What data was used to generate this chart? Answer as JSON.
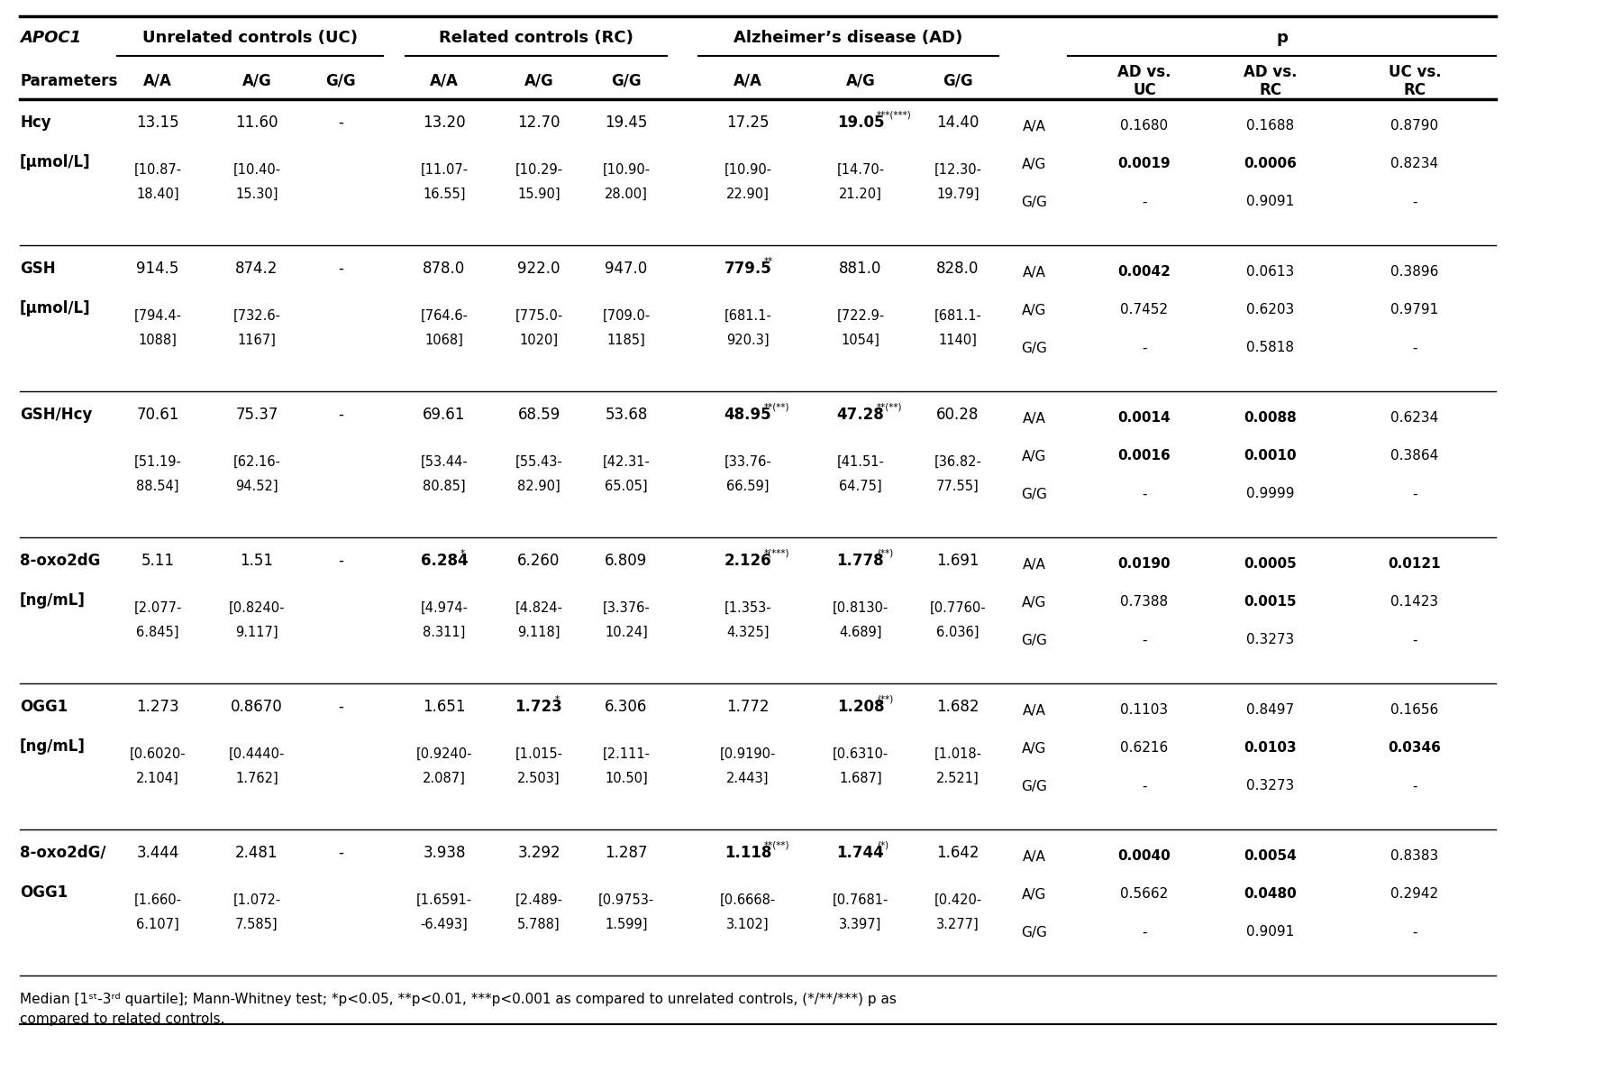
{
  "rows": [
    {
      "param1": "Hcy",
      "param2": "[μmol/L]",
      "UC_AA": "13.15",
      "UC_AG": "11.60",
      "UC_GG": "-",
      "RC_AA": "13.20",
      "RC_AG": "12.70",
      "RC_GG": "19.45",
      "AD_AA": "17.25",
      "AD_AG": "19.05",
      "AD_AG_sup": "***(***)",
      "AD_GG": "14.40",
      "AD_AA_bold": false,
      "AD_AG_bold": true,
      "RC_AA_bold": false,
      "RC_AG_bold": false,
      "p_UC": [
        "0.1680",
        "0.0019",
        "-"
      ],
      "p_RC": [
        "0.1688",
        "0.0006",
        "0.9091"
      ],
      "p_UCRC": [
        "0.8790",
        "0.8234",
        "-"
      ],
      "p_UC_bold": [
        false,
        true,
        false
      ],
      "p_RC_bold": [
        false,
        true,
        false
      ],
      "p_UCRC_bold": [
        false,
        false,
        false
      ],
      "UC_AA_q": "[10.87-",
      "UC_AA_q2": "18.40]",
      "UC_AG_q": "[10.40-",
      "UC_AG_q2": "15.30]",
      "UC_GG_q": "",
      "UC_GG_q2": "",
      "RC_AA_q": "[11.07-",
      "RC_AA_q2": "16.55]",
      "RC_AG_q": "[10.29-",
      "RC_AG_q2": "15.90]",
      "RC_GG_q": "[10.90-",
      "RC_GG_q2": "28.00]",
      "AD_AA_q": "[10.90-",
      "AD_AA_q2": "22.90]",
      "AD_AG_q": "[14.70-",
      "AD_AG_q2": "21.20]",
      "AD_GG_q": "[12.30-",
      "AD_GG_q2": "19.79]"
    },
    {
      "param1": "GSH",
      "param2": "[μmol/L]",
      "UC_AA": "914.5",
      "UC_AG": "874.2",
      "UC_GG": "-",
      "RC_AA": "878.0",
      "RC_AG": "922.0",
      "RC_GG": "947.0",
      "AD_AA": "779.5",
      "AD_AA_sup": "**",
      "AD_AG": "881.0",
      "AD_GG": "828.0",
      "AD_AA_bold": true,
      "AD_AG_bold": false,
      "RC_AA_bold": false,
      "RC_AG_bold": false,
      "p_UC": [
        "0.0042",
        "0.7452",
        "-"
      ],
      "p_RC": [
        "0.0613",
        "0.6203",
        "0.5818"
      ],
      "p_UCRC": [
        "0.3896",
        "0.9791",
        "-"
      ],
      "p_UC_bold": [
        true,
        false,
        false
      ],
      "p_RC_bold": [
        false,
        false,
        false
      ],
      "p_UCRC_bold": [
        false,
        false,
        false
      ],
      "UC_AA_q": "[794.4-",
      "UC_AA_q2": "1088]",
      "UC_AG_q": "[732.6-",
      "UC_AG_q2": "1167]",
      "UC_GG_q": "",
      "UC_GG_q2": "",
      "RC_AA_q": "[764.6-",
      "RC_AA_q2": "1068]",
      "RC_AG_q": "[775.0-",
      "RC_AG_q2": "1020]",
      "RC_GG_q": "[709.0-",
      "RC_GG_q2": "1185]",
      "AD_AA_q": "[681.1-",
      "AD_AA_q2": "920.3]",
      "AD_AG_q": "[722.9-",
      "AD_AG_q2": "1054]",
      "AD_GG_q": "[681.1-",
      "AD_GG_q2": "1140]"
    },
    {
      "param1": "GSH/Hcy",
      "param2": "",
      "UC_AA": "70.61",
      "UC_AG": "75.37",
      "UC_GG": "-",
      "RC_AA": "69.61",
      "RC_AG": "68.59",
      "RC_GG": "53.68",
      "AD_AA": "48.95",
      "AD_AA_sup": "**(**)",
      "AD_AG": "47.28",
      "AD_AG_sup": "**(**)",
      "AD_GG": "60.28",
      "AD_AA_bold": true,
      "AD_AG_bold": true,
      "RC_AA_bold": false,
      "RC_AG_bold": false,
      "p_UC": [
        "0.0014",
        "0.0016",
        "-"
      ],
      "p_RC": [
        "0.0088",
        "0.0010",
        "0.9999"
      ],
      "p_UCRC": [
        "0.6234",
        "0.3864",
        "-"
      ],
      "p_UC_bold": [
        true,
        true,
        false
      ],
      "p_RC_bold": [
        true,
        true,
        false
      ],
      "p_UCRC_bold": [
        false,
        false,
        false
      ],
      "UC_AA_q": "[51.19-",
      "UC_AA_q2": "88.54]",
      "UC_AG_q": "[62.16-",
      "UC_AG_q2": "94.52]",
      "UC_GG_q": "",
      "UC_GG_q2": "",
      "RC_AA_q": "[53.44-",
      "RC_AA_q2": "80.85]",
      "RC_AG_q": "[55.43-",
      "RC_AG_q2": "82.90]",
      "RC_GG_q": "[42.31-",
      "RC_GG_q2": "65.05]",
      "AD_AA_q": "[33.76-",
      "AD_AA_q2": "66.59]",
      "AD_AG_q": "[41.51-",
      "AD_AG_q2": "64.75]",
      "AD_GG_q": "[36.82-",
      "AD_GG_q2": "77.55]"
    },
    {
      "param1": "8-oxo2dG",
      "param2": "[ng/mL]",
      "UC_AA": "5.11",
      "UC_AG": "1.51",
      "UC_GG": "-",
      "RC_AA": "6.284",
      "RC_AA_sup": "*",
      "RC_AG": "6.260",
      "RC_GG": "6.809",
      "AD_AA": "2.126",
      "AD_AA_sup": "*(***)",
      "AD_AG": "1.778",
      "AD_AG_sup": "(**)",
      "AD_GG": "1.691",
      "AD_AA_bold": true,
      "AD_AG_bold": true,
      "RC_AA_bold": true,
      "RC_AG_bold": false,
      "p_UC": [
        "0.0190",
        "0.7388",
        "-"
      ],
      "p_RC": [
        "0.0005",
        "0.0015",
        "0.3273"
      ],
      "p_UCRC": [
        "0.0121",
        "0.1423",
        "-"
      ],
      "p_UC_bold": [
        true,
        false,
        false
      ],
      "p_RC_bold": [
        true,
        true,
        false
      ],
      "p_UCRC_bold": [
        true,
        false,
        false
      ],
      "UC_AA_q": "[2.077-",
      "UC_AA_q2": "6.845]",
      "UC_AG_q": "[0.8240-",
      "UC_AG_q2": "9.117]",
      "UC_GG_q": "",
      "UC_GG_q2": "",
      "RC_AA_q": "[4.974-",
      "RC_AA_q2": "8.311]",
      "RC_AG_q": "[4.824-",
      "RC_AG_q2": "9.118]",
      "RC_GG_q": "[3.376-",
      "RC_GG_q2": "10.24]",
      "AD_AA_q": "[1.353-",
      "AD_AA_q2": "4.325]",
      "AD_AG_q": "[0.8130-",
      "AD_AG_q2": "4.689]",
      "AD_GG_q": "[0.7760-",
      "AD_GG_q2": "6.036]"
    },
    {
      "param1": "OGG1",
      "param2": "[ng/mL]",
      "UC_AA": "1.273",
      "UC_AG": "0.8670",
      "UC_GG": "-",
      "RC_AA": "1.651",
      "RC_AG": "1.723",
      "RC_AG_sup": "*",
      "RC_GG": "6.306",
      "AD_AA": "1.772",
      "AD_AG": "1.208",
      "AD_AG_sup": "(**)",
      "AD_GG": "1.682",
      "AD_AA_bold": false,
      "AD_AG_bold": true,
      "RC_AA_bold": false,
      "RC_AG_bold": true,
      "p_UC": [
        "0.1103",
        "0.6216",
        "-"
      ],
      "p_RC": [
        "0.8497",
        "0.0103",
        "0.3273"
      ],
      "p_UCRC": [
        "0.1656",
        "0.0346",
        "-"
      ],
      "p_UC_bold": [
        false,
        false,
        false
      ],
      "p_RC_bold": [
        false,
        true,
        false
      ],
      "p_UCRC_bold": [
        false,
        true,
        false
      ],
      "UC_AA_q": "[0.6020-",
      "UC_AA_q2": "2.104]",
      "UC_AG_q": "[0.4440-",
      "UC_AG_q2": "1.762]",
      "UC_GG_q": "",
      "UC_GG_q2": "",
      "RC_AA_q": "[0.9240-",
      "RC_AA_q2": "2.087]",
      "RC_AG_q": "[1.015-",
      "RC_AG_q2": "2.503]",
      "RC_GG_q": "[2.111-",
      "RC_GG_q2": "10.50]",
      "AD_AA_q": "[0.9190-",
      "AD_AA_q2": "2.443]",
      "AD_AG_q": "[0.6310-",
      "AD_AG_q2": "1.687]",
      "AD_GG_q": "[1.018-",
      "AD_GG_q2": "2.521]"
    },
    {
      "param1": "8-oxo2dG/",
      "param2": "OGG1",
      "UC_AA": "3.444",
      "UC_AG": "2.481",
      "UC_GG": "-",
      "RC_AA": "3.938",
      "RC_AG": "3.292",
      "RC_GG": "1.287",
      "AD_AA": "1.118",
      "AD_AA_sup": "**(**)",
      "AD_AG": "1.744",
      "AD_AG_sup": "(*)",
      "AD_GG": "1.642",
      "AD_AA_bold": true,
      "AD_AG_bold": true,
      "RC_AA_bold": false,
      "RC_AG_bold": false,
      "p_UC": [
        "0.0040",
        "0.5662",
        "-"
      ],
      "p_RC": [
        "0.0054",
        "0.0480",
        "0.9091"
      ],
      "p_UCRC": [
        "0.8383",
        "0.2942",
        "-"
      ],
      "p_UC_bold": [
        true,
        false,
        false
      ],
      "p_RC_bold": [
        true,
        true,
        false
      ],
      "p_UCRC_bold": [
        false,
        false,
        false
      ],
      "UC_AA_q": "[1.660-",
      "UC_AA_q2": "6.107]",
      "UC_AG_q": "[1.072-",
      "UC_AG_q2": "7.585]",
      "UC_GG_q": "",
      "UC_GG_q2": "",
      "RC_AA_q": "[1.6591-",
      "RC_AA_q2": "-6.493]",
      "RC_AG_q": "[2.489-",
      "RC_AG_q2": "5.788]",
      "RC_GG_q": "[0.9753-",
      "RC_GG_q2": "1.599]",
      "AD_AA_q": "[0.6668-",
      "AD_AA_q2": "3.102]",
      "AD_AG_q": "[0.7681-",
      "AD_AG_q2": "3.397]",
      "AD_GG_q": "[0.420-",
      "AD_GG_q2": "3.277]"
    }
  ]
}
